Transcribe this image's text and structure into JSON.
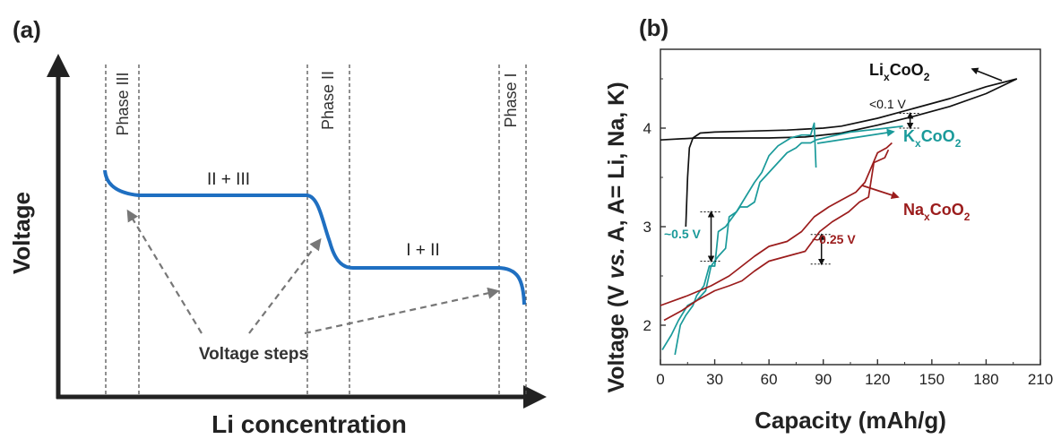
{
  "colors": {
    "axis": "#222222",
    "blue": "#1f6fc1",
    "black": "#111111",
    "teal": "#1a9a9a",
    "red": "#9b1c1c",
    "dash": "#777777",
    "frame": "#333333"
  },
  "chart_data": [
    {
      "type": "line",
      "panel_label": "(a)",
      "xlabel": "Li concentration",
      "ylabel": "Voltage",
      "phase_labels": [
        "Phase III",
        "Phase II",
        "Phase I"
      ],
      "region_labels": [
        "II + III",
        "I + II"
      ],
      "annotation": "Voltage steps",
      "ticks_shown": false
    },
    {
      "type": "line",
      "panel_label": "(b)",
      "xlabel": "Capacity (mAh/g)",
      "ylabel_parts": [
        "Voltage (V ",
        "vs.",
        " A, A= Li, Na, K)"
      ],
      "xlim": [
        0,
        210
      ],
      "ylim": [
        1.6,
        4.8
      ],
      "xticks": [
        "0",
        "30",
        "60",
        "90",
        "120",
        "150",
        "180",
        "210"
      ],
      "yticks": [
        "2",
        "3",
        "4"
      ],
      "series": [
        {
          "label_main": "Li",
          "label_sub": "x",
          "label_rest": "CoO",
          "label_sub2": "2",
          "color_key": "black",
          "segments": [
            [
              [
                0,
                3.88
              ],
              [
                20,
                3.9
              ],
              [
                40,
                3.9
              ],
              [
                60,
                3.9
              ],
              [
                80,
                3.91
              ],
              [
                100,
                3.95
              ],
              [
                120,
                4.03
              ],
              [
                140,
                4.12
              ],
              [
                160,
                4.22
              ],
              [
                180,
                4.35
              ],
              [
                197,
                4.5
              ]
            ],
            [
              [
                197,
                4.5
              ],
              [
                180,
                4.42
              ],
              [
                160,
                4.3
              ],
              [
                140,
                4.2
              ],
              [
                120,
                4.1
              ],
              [
                100,
                4.02
              ],
              [
                90,
                4.0
              ],
              [
                70,
                3.98
              ],
              [
                50,
                3.97
              ],
              [
                30,
                3.96
              ],
              [
                22,
                3.95
              ],
              [
                18,
                3.9
              ],
              [
                16,
                3.8
              ],
              [
                15,
                3.5
              ],
              [
                14,
                3.0
              ]
            ]
          ]
        },
        {
          "label_main": "K",
          "label_sub": "x",
          "label_rest": "CoO",
          "label_sub2": "2",
          "color_key": "teal",
          "segments": [
            [
              [
                8,
                1.7
              ],
              [
                11,
                2.0
              ],
              [
                14,
                2.1
              ],
              [
                18,
                2.2
              ],
              [
                20,
                2.3
              ],
              [
                24,
                2.4
              ],
              [
                27,
                2.6
              ],
              [
                30,
                2.6
              ],
              [
                32,
                2.95
              ],
              [
                36,
                3.0
              ],
              [
                40,
                3.1
              ],
              [
                44,
                3.2
              ],
              [
                48,
                3.2
              ],
              [
                52,
                3.25
              ],
              [
                55,
                3.45
              ],
              [
                60,
                3.55
              ],
              [
                65,
                3.65
              ],
              [
                70,
                3.75
              ],
              [
                75,
                3.8
              ],
              [
                78,
                3.85
              ],
              [
                83,
                3.85
              ],
              [
                86,
                3.88
              ],
              [
                95,
                3.92
              ],
              [
                105,
                3.96
              ],
              [
                115,
                3.98
              ],
              [
                125,
                4.0
              ],
              [
                134,
                4.02
              ]
            ],
            [
              [
                1,
                1.75
              ],
              [
                6,
                1.9
              ],
              [
                10,
                2.05
              ],
              [
                15,
                2.2
              ],
              [
                20,
                2.25
              ],
              [
                25,
                2.35
              ],
              [
                28,
                2.6
              ],
              [
                32,
                2.7
              ],
              [
                36,
                2.78
              ],
              [
                38,
                3.1
              ],
              [
                42,
                3.15
              ],
              [
                47,
                3.3
              ],
              [
                52,
                3.45
              ],
              [
                56,
                3.55
              ],
              [
                60,
                3.72
              ],
              [
                65,
                3.82
              ],
              [
                72,
                3.9
              ],
              [
                78,
                3.93
              ],
              [
                83,
                3.93
              ],
              [
                85,
                4.05
              ],
              [
                86,
                3.6
              ]
            ]
          ]
        },
        {
          "label_main": "Na",
          "label_sub": "x",
          "label_rest": "CoO",
          "label_sub2": "2",
          "color_key": "red",
          "segments": [
            [
              [
                0,
                2.2
              ],
              [
                15,
                2.3
              ],
              [
                28,
                2.4
              ],
              [
                38,
                2.5
              ],
              [
                45,
                2.6
              ],
              [
                52,
                2.7
              ],
              [
                60,
                2.8
              ],
              [
                70,
                2.85
              ],
              [
                78,
                2.95
              ],
              [
                85,
                3.1
              ],
              [
                93,
                3.2
              ],
              [
                100,
                3.27
              ],
              [
                108,
                3.35
              ],
              [
                113,
                3.45
              ],
              [
                120,
                3.75
              ],
              [
                125,
                3.8
              ],
              [
                128,
                3.85
              ]
            ],
            [
              [
                2,
                2.05
              ],
              [
                12,
                2.15
              ],
              [
                20,
                2.25
              ],
              [
                30,
                2.35
              ],
              [
                38,
                2.4
              ],
              [
                45,
                2.45
              ],
              [
                52,
                2.55
              ],
              [
                60,
                2.65
              ],
              [
                70,
                2.7
              ],
              [
                80,
                2.75
              ],
              [
                88,
                2.95
              ],
              [
                95,
                3.05
              ],
              [
                104,
                3.15
              ],
              [
                110,
                3.25
              ],
              [
                115,
                3.3
              ],
              [
                118,
                3.65
              ],
              [
                124,
                3.7
              ],
              [
                126,
                3.78
              ]
            ]
          ]
        }
      ],
      "annotations": [
        {
          "text": "<0.1 V",
          "x": 128,
          "y": 4.17
        },
        {
          "text": "~0.5 V",
          "x": 11,
          "y": 2.83
        },
        {
          "text": "~0.25 V",
          "x": 92,
          "y": 2.82
        }
      ],
      "step_markers": [
        {
          "x": 28,
          "y0": 2.65,
          "y1": 3.15,
          "color_key": "black"
        },
        {
          "x": 89,
          "y0": 2.62,
          "y1": 2.92,
          "color_key": "black"
        },
        {
          "x": 138,
          "y0": 4.0,
          "y1": 4.15,
          "color_key": "black"
        }
      ]
    }
  ]
}
